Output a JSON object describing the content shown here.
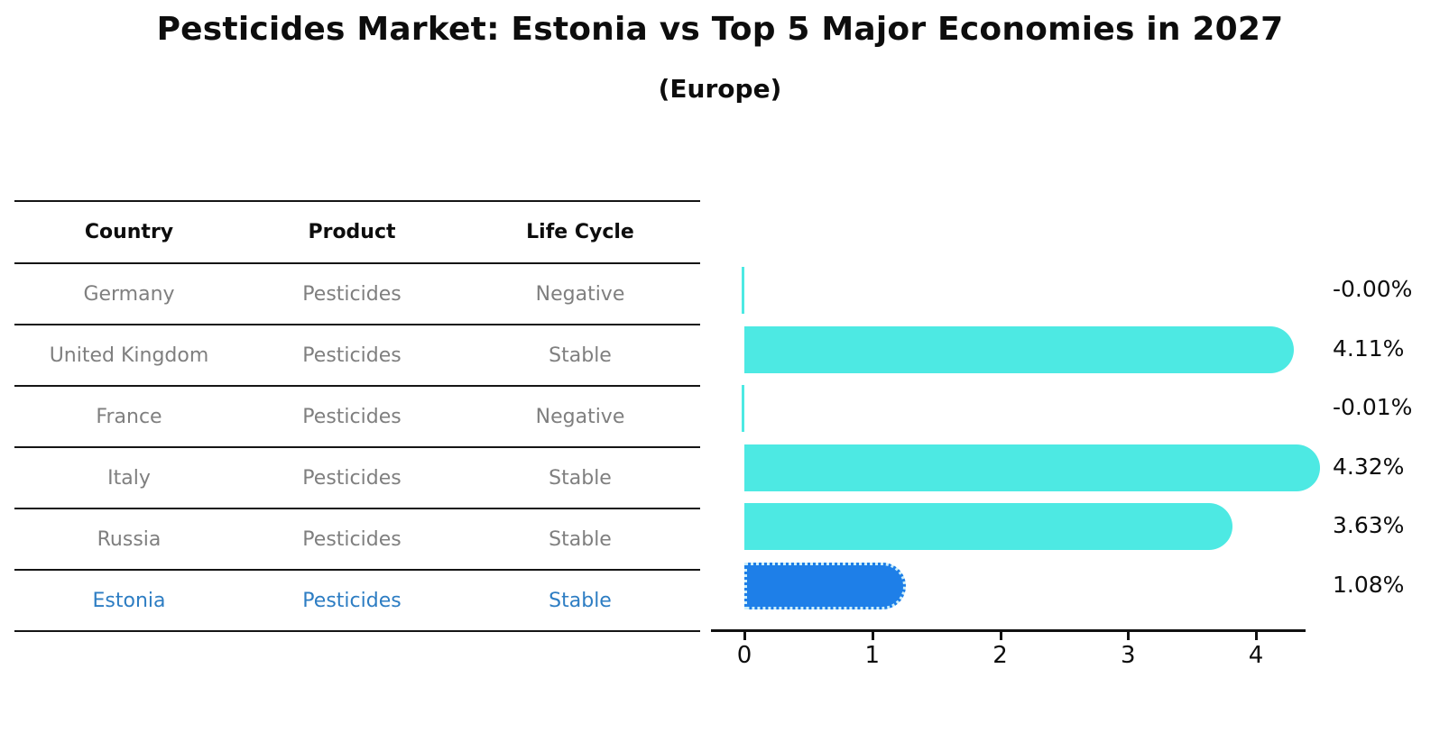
{
  "title": "Pesticides Market: Estonia vs Top 5 Major Economies in 2027",
  "subtitle": "(Europe)",
  "table": {
    "headers": [
      "Country",
      "Product",
      "Life Cycle"
    ],
    "rows": [
      {
        "country": "Germany",
        "product": "Pesticides",
        "life_cycle": "Negative",
        "highlight": false
      },
      {
        "country": "United Kingdom",
        "product": "Pesticides",
        "life_cycle": "Stable",
        "highlight": false
      },
      {
        "country": "France",
        "product": "Pesticides",
        "life_cycle": "Negative",
        "highlight": false
      },
      {
        "country": "Italy",
        "product": "Pesticides",
        "life_cycle": "Stable",
        "highlight": false
      },
      {
        "country": "Russia",
        "product": "Pesticides",
        "life_cycle": "Stable",
        "highlight": false
      },
      {
        "country": "Estonia",
        "product": "Pesticides",
        "life_cycle": "Stable",
        "highlight": true
      }
    ]
  },
  "chart_data": {
    "type": "bar",
    "orientation": "horizontal",
    "title": "Pesticides Market: Estonia vs Top 5 Major Economies in 2027 (Europe)",
    "categories": [
      "Germany",
      "United Kingdom",
      "France",
      "Italy",
      "Russia",
      "Estonia"
    ],
    "values": [
      -0.0,
      4.11,
      -0.01,
      4.32,
      3.63,
      1.08
    ],
    "value_labels": [
      "-0.00%",
      "4.11%",
      "-0.01%",
      "4.32%",
      "3.63%",
      "1.08%"
    ],
    "x_ticks": [
      "0",
      "1",
      "2",
      "3",
      "4"
    ],
    "xlim": [
      -0.26,
      4.37
    ],
    "grid": false,
    "legend": "none",
    "bar_color": "#4DE9E3",
    "highlight_color": "#1E7FE8",
    "highlight_index": 5,
    "highlight_text_color": "#2D7DC3"
  }
}
